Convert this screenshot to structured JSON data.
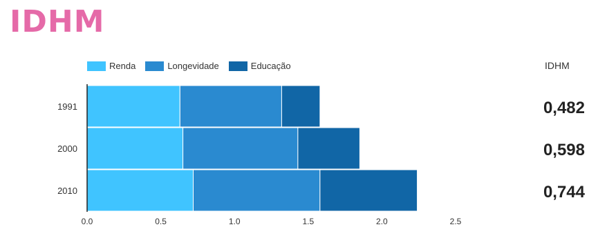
{
  "title": "IDHM",
  "idhm_header": "IDHM",
  "idhm_values": [
    "0,482",
    "0,598",
    "0,744"
  ],
  "colors": {
    "title": "#e56aa8",
    "renda": "#40c4ff",
    "longevidade": "#2a8ad0",
    "educacao": "#1166a6"
  },
  "chart_data": {
    "type": "bar",
    "orientation": "horizontal",
    "stacked": true,
    "categories": [
      "1991",
      "2000",
      "2010"
    ],
    "series": [
      {
        "name": "Renda",
        "values": [
          0.63,
          0.65,
          0.72
        ]
      },
      {
        "name": "Longevidade",
        "values": [
          0.69,
          0.78,
          0.86
        ]
      },
      {
        "name": "Educação",
        "values": [
          0.26,
          0.42,
          0.66
        ]
      }
    ],
    "xlim": [
      0,
      2.5
    ],
    "xticks": [
      "0.0",
      "0.5",
      "1.0",
      "1.5",
      "2.0",
      "2.5"
    ],
    "legend": "top",
    "grid": false
  }
}
